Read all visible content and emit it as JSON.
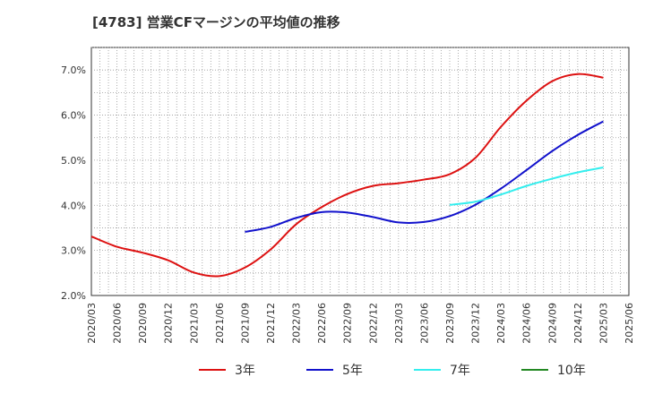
{
  "chart_data": {
    "type": "line",
    "title": "[4783]  営業CFマージンの平均値の推移",
    "xlabel": "",
    "ylabel": "",
    "ylim": [
      2.0,
      7.5
    ],
    "yticks": [
      "2.0%",
      "3.0%",
      "4.0%",
      "5.0%",
      "6.0%",
      "7.0%"
    ],
    "ytick_values": [
      2.0,
      3.0,
      4.0,
      5.0,
      6.0,
      7.0
    ],
    "categories": [
      "2020/03",
      "2020/06",
      "2020/09",
      "2020/12",
      "2021/03",
      "2021/06",
      "2021/09",
      "2021/12",
      "2022/03",
      "2022/06",
      "2022/09",
      "2022/12",
      "2023/03",
      "2023/06",
      "2023/09",
      "2023/12",
      "2024/03",
      "2024/06",
      "2024/09",
      "2024/12",
      "2025/03",
      "2025/06"
    ],
    "grid": true,
    "legend_position": "bottom",
    "series": [
      {
        "name": "3年",
        "color": "#dd1111",
        "values": [
          3.31,
          3.08,
          2.95,
          2.78,
          2.51,
          2.43,
          2.62,
          3.02,
          3.58,
          3.96,
          4.25,
          4.43,
          4.49,
          4.57,
          4.69,
          5.05,
          5.74,
          6.32,
          6.75,
          6.91,
          6.83,
          null
        ]
      },
      {
        "name": "5年",
        "color": "#1111cc",
        "values": [
          null,
          null,
          null,
          null,
          null,
          null,
          3.41,
          3.52,
          3.72,
          3.85,
          3.84,
          3.74,
          3.62,
          3.63,
          3.76,
          4.01,
          4.37,
          4.78,
          5.2,
          5.56,
          5.86,
          null
        ]
      },
      {
        "name": "7年",
        "color": "#33eeee",
        "values": [
          null,
          null,
          null,
          null,
          null,
          null,
          null,
          null,
          null,
          null,
          null,
          null,
          null,
          null,
          4.01,
          4.08,
          4.24,
          4.43,
          4.59,
          4.73,
          4.84,
          null
        ]
      },
      {
        "name": "10年",
        "color": "#228822",
        "values": [
          null,
          null,
          null,
          null,
          null,
          null,
          null,
          null,
          null,
          null,
          null,
          null,
          null,
          null,
          null,
          null,
          null,
          null,
          null,
          null,
          null,
          null
        ]
      }
    ]
  }
}
